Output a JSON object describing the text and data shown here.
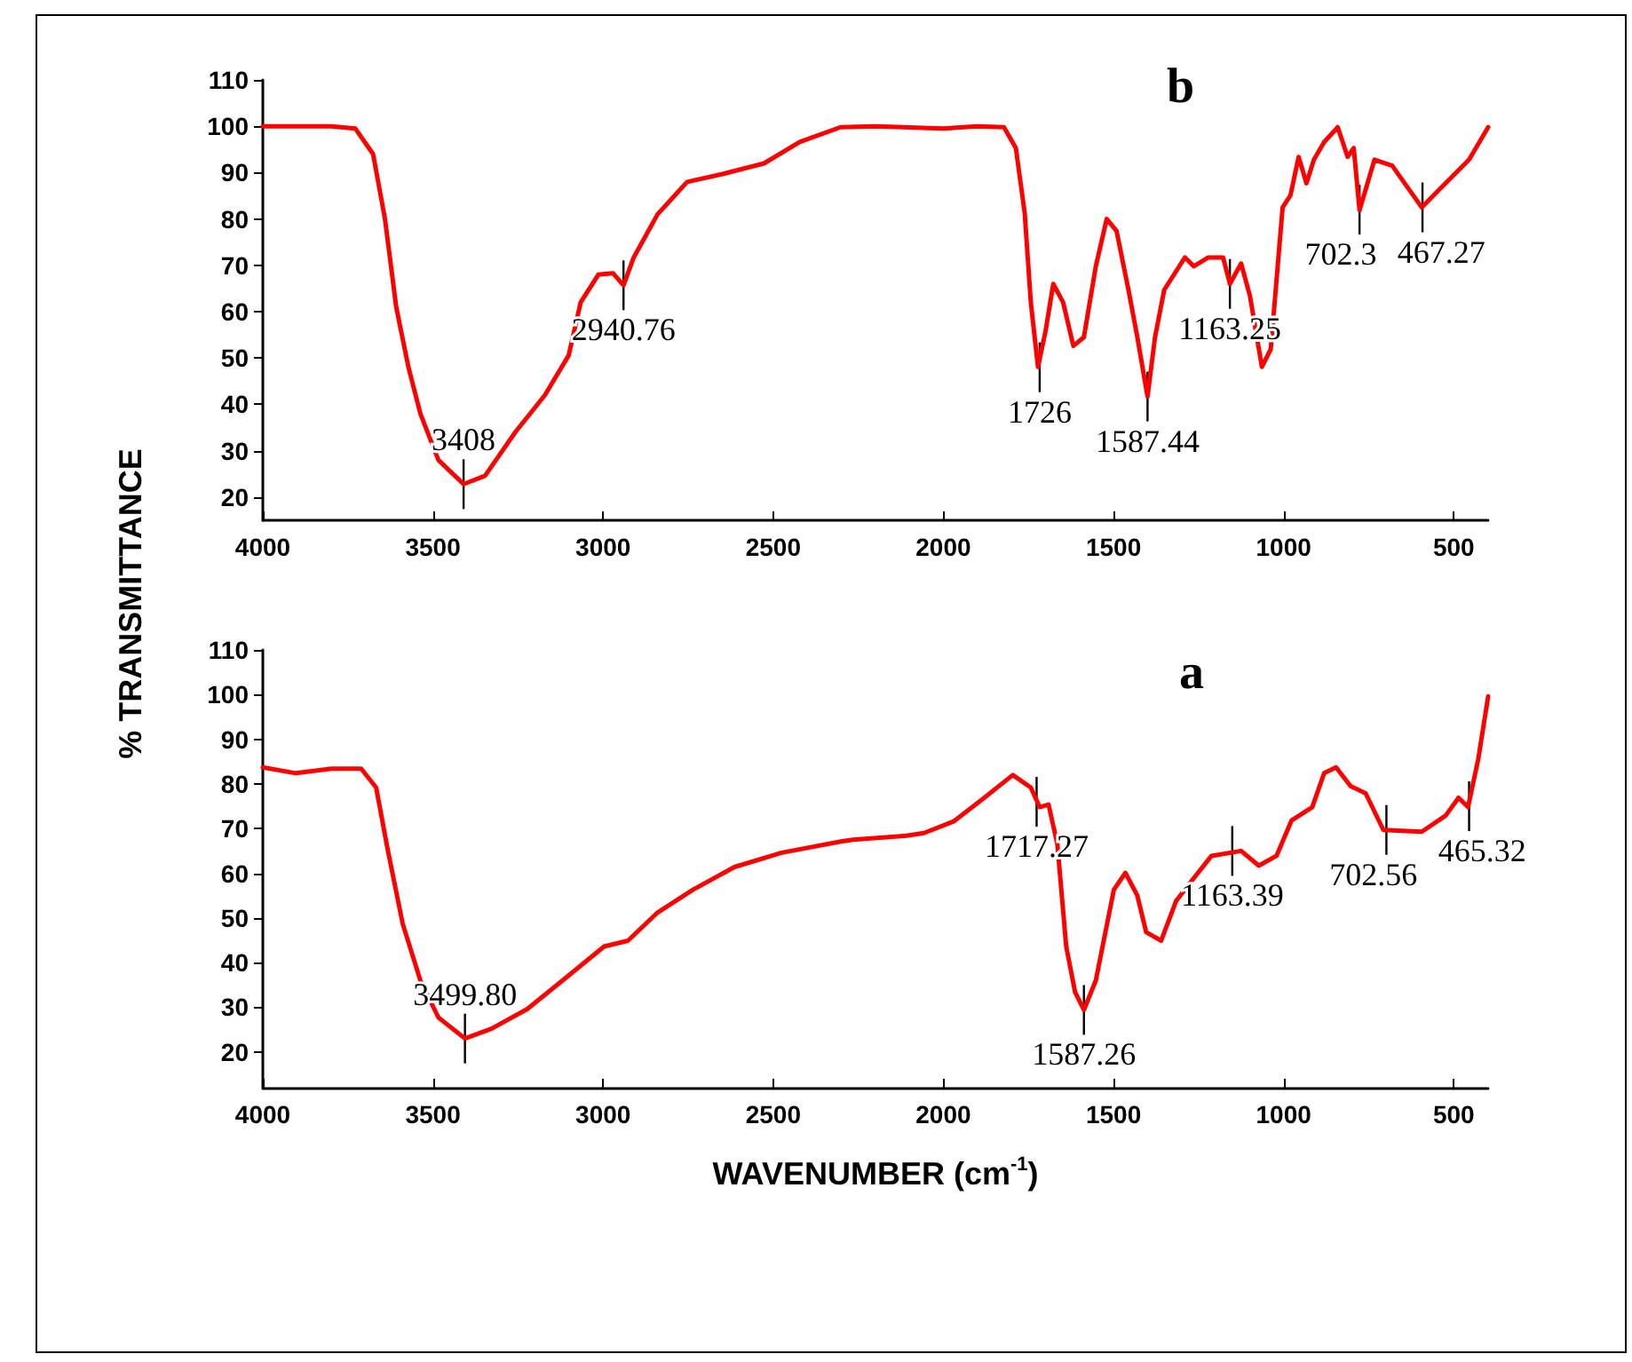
{
  "chart_data": [
    {
      "type": "line",
      "title": "b",
      "ylabel": "% TRANSMITTANCE",
      "marker": "none",
      "line_style": "solid",
      "xlim": [
        4000,
        399
      ],
      "xticks": [
        4000,
        3500,
        3000,
        2500,
        2000,
        1500,
        1000,
        500
      ],
      "ylim": [
        15,
        110
      ],
      "yticks": [
        20,
        30,
        40,
        50,
        60,
        70,
        80,
        90,
        100,
        110
      ],
      "series": [
        {
          "color": "#ff0000",
          "x": [
            4000,
            3900,
            3800,
            3728,
            3676,
            3641,
            3608,
            3572,
            3537,
            3484,
            3410,
            3347,
            3258,
            3171,
            3101,
            3066,
            3014,
            2971,
            2940,
            2910,
            2840,
            2753,
            2649,
            2527,
            2422,
            2302,
            2200,
            2000,
            1900,
            1822,
            1787,
            1761,
            1743,
            1722,
            1700,
            1677,
            1648,
            1618,
            1587,
            1552,
            1520,
            1491,
            1456,
            1430,
            1400,
            1378,
            1351,
            1290,
            1264,
            1221,
            1178,
            1158,
            1125,
            1099,
            1064,
            1038,
            1003,
            980,
            956,
            933,
            911,
            881,
            841,
            812,
            794,
            777,
            733,
            681,
            594,
            542,
            455,
            399
          ],
          "values": [
            100,
            100,
            100,
            99.5,
            94,
            80,
            61,
            48,
            38,
            28,
            22.8,
            24.6,
            34,
            42,
            50.6,
            62,
            68,
            68.3,
            65.7,
            71.7,
            81,
            88,
            89.7,
            92,
            96.6,
            99.8,
            100,
            99.5,
            100,
            99.8,
            95.3,
            81.3,
            62,
            48.1,
            55.7,
            66,
            62,
            52.6,
            54.5,
            69.8,
            80,
            77.4,
            64.7,
            54.5,
            41.7,
            54.5,
            64.7,
            71.7,
            69.8,
            71.7,
            71.7,
            66,
            70.4,
            63.4,
            48.1,
            51.9,
            82.5,
            85.1,
            93.4,
            87.7,
            92.8,
            96.6,
            99.8,
            93.4,
            95.3,
            81.9,
            92.8,
            91.5,
            82.5,
            86.4,
            92.8,
            99.8
          ]
        }
      ],
      "annotations": [
        {
          "text": "3408",
          "x": 3410,
          "y": 22.8
        },
        {
          "text": "2940.76",
          "x": 2940,
          "y": 65.7
        },
        {
          "text": "1726",
          "x": 1717,
          "y": 48
        },
        {
          "text": "1587.44",
          "x": 1400,
          "y": 41.7
        },
        {
          "text": "1163.25",
          "x": 1158,
          "y": 66
        },
        {
          "text": "702.3",
          "x": 777,
          "y": 82
        },
        {
          "text": "467.27",
          "x": 592,
          "y": 82.5
        }
      ]
    },
    {
      "type": "line",
      "title": "a",
      "xlabel": "WAVENUMBER (cm$^{-1}$)",
      "marker": "none",
      "line_style": "solid",
      "xlim": [
        4000,
        399
      ],
      "xticks": [
        4000,
        3500,
        3000,
        2500,
        2000,
        1500,
        1000,
        500
      ],
      "ylim": [
        12,
        110
      ],
      "yticks": [
        20,
        30,
        40,
        50,
        60,
        70,
        80,
        90,
        100,
        110
      ],
      "series": [
        {
          "color": "#ff0000",
          "x": [
            4000,
            3903,
            3798,
            3711,
            3667,
            3633,
            3589,
            3537,
            3484,
            3406,
            3328,
            3223,
            3119,
            2997,
            2927,
            2840,
            2736,
            2614,
            2475,
            2301,
            2266,
            2109,
            2057,
            1970,
            1883,
            1796,
            1743,
            1717,
            1691,
            1665,
            1639,
            1613,
            1587,
            1552,
            1499,
            1465,
            1430,
            1404,
            1360,
            1316,
            1264,
            1212,
            1125,
            1073,
            1021,
            977,
            916,
            881,
            846,
            803,
            759,
            707,
            594,
            524,
            486,
            458,
            428,
            399
          ],
          "values": [
            83.7,
            82.4,
            83.4,
            83.4,
            79.2,
            65.3,
            48.7,
            36,
            27.7,
            23,
            25.2,
            29.6,
            36,
            43.6,
            44.9,
            51.2,
            56.3,
            61.4,
            64.6,
            67.1,
            67.5,
            68.4,
            69,
            71.6,
            76.7,
            82,
            79.2,
            74.8,
            75.4,
            66.5,
            43.6,
            33.4,
            29.4,
            36,
            56.3,
            60.1,
            55,
            46.8,
            44.9,
            53.8,
            58.9,
            63.9,
            65,
            61.7,
            63.9,
            71.8,
            74.8,
            82.4,
            83.7,
            79.5,
            77.9,
            69.7,
            69.3,
            72.9,
            76.9,
            74.8,
            85.6,
            99.6
          ]
        }
      ],
      "annotations": [
        {
          "text": "3499.80",
          "x": 3406,
          "y": 23
        },
        {
          "text": "1717.27",
          "x": 1726,
          "y": 76
        },
        {
          "text": "1587.26",
          "x": 1587,
          "y": 29.4
        },
        {
          "text": "1163.39",
          "x": 1151,
          "y": 65
        },
        {
          "text": "702.56",
          "x": 698,
          "y": 69.7
        },
        {
          "text": "465.32",
          "x": 455,
          "y": 75
        }
      ]
    }
  ]
}
